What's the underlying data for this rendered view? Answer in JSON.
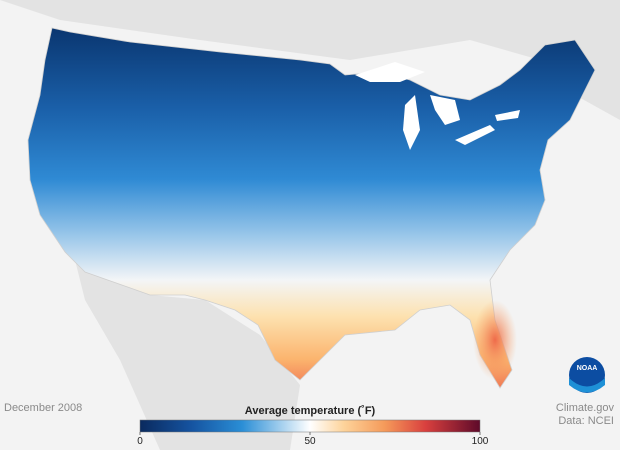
{
  "map": {
    "date": "December 2008",
    "credit": "Climate.gov",
    "source": "Data: NCEI",
    "logo": "NOAA"
  },
  "legend": {
    "title": "Average temperature (˚F)",
    "lim": [
      0,
      100
    ],
    "ticks": [
      0,
      50,
      100
    ]
  }
}
